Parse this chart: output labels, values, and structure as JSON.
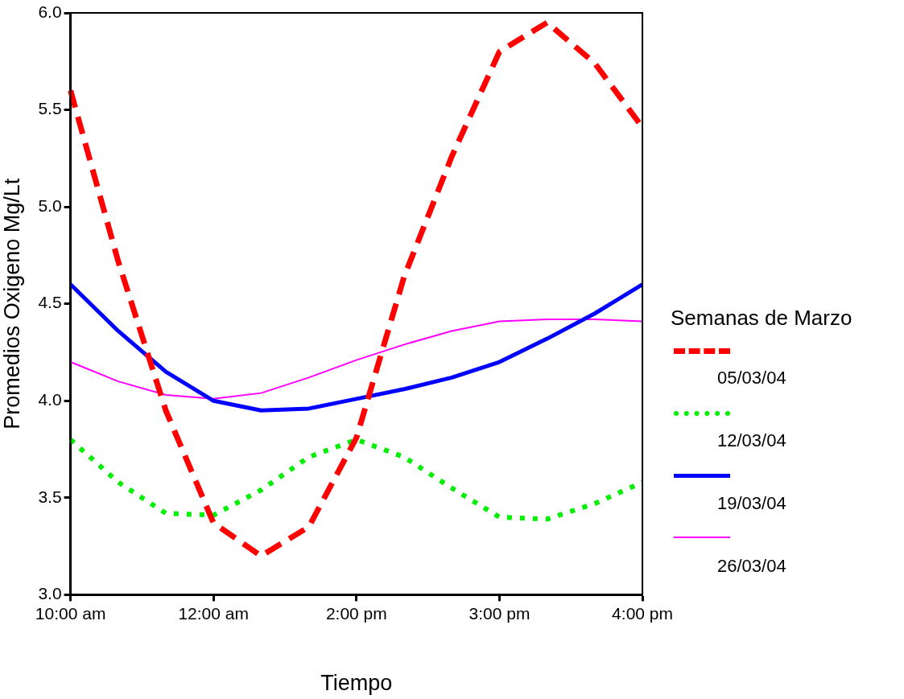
{
  "chart_data": {
    "type": "line",
    "xlabel": "Tiempo",
    "ylabel": "Promedios Oxigeno Mg/Lt",
    "legend_title": "Semanas de Marzo",
    "legend": "right",
    "grid": false,
    "marker": "none",
    "categories": [
      "10:00 am",
      null,
      null,
      "12:00 am",
      null,
      null,
      "2:00 pm",
      null,
      null,
      "3:00 pm",
      null,
      null,
      "4:00 pm"
    ],
    "ylim": [
      3,
      6
    ],
    "yticks": [
      {
        "value": 3,
        "label": "3.0"
      },
      {
        "value": 3.5,
        "label": "3.5"
      },
      {
        "value": 4,
        "label": "4.0"
      },
      {
        "value": 4.5,
        "label": "4.5"
      },
      {
        "value": 5,
        "label": "5.0"
      },
      {
        "value": 5.5,
        "label": "5.5"
      },
      {
        "value": 6,
        "label": "6.0"
      }
    ],
    "series": [
      {
        "name": "05/03/04",
        "color": "#ff0000",
        "line_style": "dashed",
        "values": [
          5.6,
          4.72,
          3.95,
          3.37,
          3.2,
          3.35,
          3.81,
          4.64,
          5.26,
          5.8,
          5.95,
          5.74,
          5.41
        ]
      },
      {
        "name": "12/03/04",
        "color": "#00ee00",
        "line_style": "dotted",
        "values": [
          3.8,
          3.58,
          3.42,
          3.41,
          3.54,
          3.71,
          3.8,
          3.71,
          3.55,
          3.4,
          3.39,
          3.47,
          3.58
        ]
      },
      {
        "name": "19/03/04",
        "color": "#0000ff",
        "line_style": "solid",
        "values": [
          4.6,
          4.36,
          4.15,
          4.0,
          3.95,
          3.96,
          4.01,
          4.06,
          4.12,
          4.2,
          4.32,
          4.45,
          4.6
        ]
      },
      {
        "name": "26/03/04",
        "color": "#ff00ff",
        "line_style": "solid",
        "values": [
          4.2,
          4.1,
          4.03,
          4.01,
          4.04,
          4.12,
          4.21,
          4.29,
          4.36,
          4.41,
          4.42,
          4.42,
          4.41
        ]
      }
    ]
  }
}
